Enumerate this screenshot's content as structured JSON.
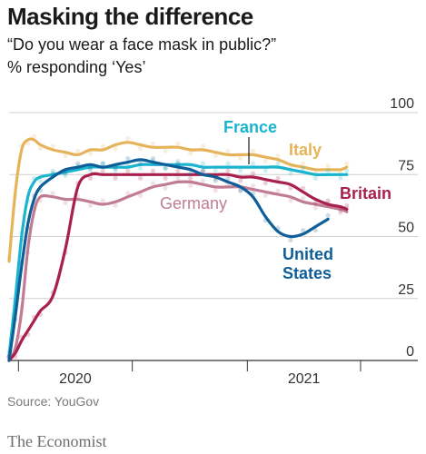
{
  "header": {
    "title": "Masking the difference",
    "subtitle": "“Do you wear a face mask in public?”",
    "unit": "% responding ‘Yes’"
  },
  "footer": {
    "source": "Source: YouGov",
    "brand": "The Economist"
  },
  "chart_data": {
    "type": "line",
    "title": "Masking the difference",
    "subtitle": "“Do you wear a face mask in public?”",
    "ylabel": "% responding ‘Yes’",
    "ylim": [
      0,
      100
    ],
    "yticks": [
      0,
      25,
      50,
      75,
      100
    ],
    "xlim": [
      "2019-12-17",
      "2021-08-18"
    ],
    "xticks": [
      {
        "label": "2020",
        "date": "2020-01-01"
      },
      {
        "label": "2021",
        "date": "2021-01-01"
      }
    ],
    "grid": true,
    "colors": {
      "France": "#1ab4cf",
      "Italy": "#e5b35a",
      "Britain": "#a8204b",
      "Germany": "#c07c94",
      "United States": "#0f5e98",
      "grid": "#cfcfcf",
      "text": "#1a1a1a"
    },
    "series": [
      {
        "name": "Italy",
        "label_lines": [
          "Italy"
        ],
        "x": [
          "2019-12-17",
          "2019-12-27",
          "2020-01-06",
          "2020-01-16",
          "2020-01-26",
          "2020-02-05",
          "2020-02-25",
          "2020-03-16",
          "2020-04-05",
          "2020-04-25",
          "2020-05-15",
          "2020-06-04",
          "2020-06-24",
          "2020-07-14",
          "2020-08-03",
          "2020-08-23",
          "2020-09-12",
          "2020-10-02",
          "2020-10-22",
          "2020-11-11",
          "2020-12-01",
          "2020-12-21",
          "2021-01-10",
          "2021-01-30",
          "2021-02-19",
          "2021-03-11",
          "2021-03-31",
          "2021-04-20",
          "2021-05-10",
          "2021-05-30",
          "2021-06-09"
        ],
        "y": [
          40,
          68,
          85,
          89,
          89,
          87,
          85,
          84,
          83,
          85,
          85,
          87,
          88,
          87,
          86,
          86,
          86,
          85,
          85,
          84,
          83,
          83,
          83,
          82,
          81,
          79,
          78,
          77,
          77,
          77,
          78
        ]
      },
      {
        "name": "France",
        "label_lines": [
          "France"
        ],
        "x": [
          "2019-12-17",
          "2019-12-27",
          "2020-01-06",
          "2020-01-16",
          "2020-01-26",
          "2020-02-05",
          "2020-02-25",
          "2020-03-16",
          "2020-04-05",
          "2020-04-25",
          "2020-05-15",
          "2020-06-04",
          "2020-06-24",
          "2020-07-14",
          "2020-08-03",
          "2020-08-23",
          "2020-09-12",
          "2020-10-02",
          "2020-10-22",
          "2020-11-11",
          "2020-12-01",
          "2020-12-21",
          "2021-01-10",
          "2021-01-30",
          "2021-02-19",
          "2021-03-11",
          "2021-03-31",
          "2021-04-20",
          "2021-05-10",
          "2021-05-30",
          "2021-06-09"
        ],
        "y": [
          2,
          25,
          50,
          66,
          72,
          74,
          75,
          76,
          77,
          78,
          78,
          78,
          78,
          79,
          79,
          79,
          79,
          79,
          78,
          78,
          78,
          78,
          78,
          78,
          78,
          77,
          76,
          75,
          75,
          75,
          75
        ]
      },
      {
        "name": "Germany",
        "label_lines": [
          "Germany"
        ],
        "x": [
          "2019-12-17",
          "2019-12-27",
          "2020-01-06",
          "2020-01-16",
          "2020-01-26",
          "2020-02-05",
          "2020-02-25",
          "2020-03-16",
          "2020-04-05",
          "2020-04-25",
          "2020-05-15",
          "2020-06-04",
          "2020-06-24",
          "2020-07-14",
          "2020-08-03",
          "2020-08-23",
          "2020-09-12",
          "2020-10-02",
          "2020-10-22",
          "2020-11-11",
          "2020-12-01",
          "2020-12-21",
          "2021-01-10",
          "2021-01-30",
          "2021-02-19",
          "2021-03-11",
          "2021-03-31",
          "2021-04-20",
          "2021-05-10",
          "2021-05-30",
          "2021-06-09"
        ],
        "y": [
          0,
          5,
          20,
          45,
          60,
          66,
          66,
          65,
          65,
          64,
          63,
          64,
          66,
          68,
          70,
          71,
          72,
          72,
          71,
          70,
          70,
          70,
          69,
          68,
          67,
          66,
          64,
          63,
          62,
          61,
          60
        ]
      },
      {
        "name": "Britain",
        "label_lines": [
          "Britain"
        ],
        "x": [
          "2019-12-17",
          "2019-12-27",
          "2020-01-06",
          "2020-01-16",
          "2020-01-26",
          "2020-02-05",
          "2020-02-25",
          "2020-03-16",
          "2020-04-05",
          "2020-04-25",
          "2020-05-15",
          "2020-06-04",
          "2020-06-24",
          "2020-07-14",
          "2020-08-03",
          "2020-08-23",
          "2020-09-12",
          "2020-10-02",
          "2020-10-22",
          "2020-11-11",
          "2020-12-01",
          "2020-12-21",
          "2021-01-10",
          "2021-01-30",
          "2021-02-19",
          "2021-03-11",
          "2021-03-31",
          "2021-04-20",
          "2021-05-10",
          "2021-05-30",
          "2021-06-09"
        ],
        "y": [
          0,
          3,
          8,
          12,
          16,
          20,
          26,
          45,
          70,
          75,
          75,
          75,
          75,
          75,
          75,
          75,
          75,
          75,
          75,
          75,
          75,
          74,
          74,
          73,
          72,
          71,
          68,
          65,
          63,
          62,
          61
        ]
      },
      {
        "name": "United States",
        "label_lines": [
          "United",
          "States"
        ],
        "x": [
          "2019-12-17",
          "2019-12-27",
          "2020-01-06",
          "2020-01-16",
          "2020-01-26",
          "2020-02-05",
          "2020-02-25",
          "2020-03-16",
          "2020-04-05",
          "2020-04-25",
          "2020-05-15",
          "2020-06-04",
          "2020-06-24",
          "2020-07-14",
          "2020-08-03",
          "2020-08-23",
          "2020-09-12",
          "2020-10-02",
          "2020-10-22",
          "2020-11-11",
          "2020-12-01",
          "2020-12-21",
          "2021-01-10",
          "2021-01-30",
          "2021-02-19",
          "2021-03-11",
          "2021-03-31",
          "2021-04-20",
          "2021-05-10"
        ],
        "y": [
          0,
          18,
          38,
          55,
          65,
          70,
          74,
          77,
          78,
          79,
          78,
          79,
          80,
          81,
          80,
          79,
          78,
          77,
          75,
          74,
          72,
          70,
          66,
          58,
          52,
          50,
          51,
          54,
          57
        ]
      }
    ]
  }
}
